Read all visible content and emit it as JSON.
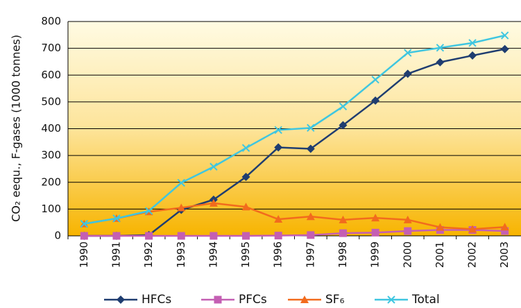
{
  "chart_data": {
    "type": "line",
    "y_label": "CO₂ eequ., F-gases (1000 tonnes)",
    "categories": [
      "1990",
      "1991",
      "1992",
      "1993",
      "1994",
      "1995",
      "1996",
      "1997",
      "1998",
      "1999",
      "2000",
      "2001",
      "2002",
      "2003"
    ],
    "series": [
      {
        "name": "HFCs",
        "color": "#1f3d70",
        "marker": "diamond",
        "values": [
          0,
          0,
          3,
          97,
          135,
          220,
          330,
          325,
          413,
          505,
          605,
          648,
          673,
          697
        ]
      },
      {
        "name": "PFCs",
        "color": "#c45fb3",
        "marker": "square",
        "values": [
          0,
          0,
          0,
          0,
          0,
          0,
          1,
          3,
          10,
          12,
          18,
          22,
          22,
          18
        ]
      },
      {
        "name": "SF₆",
        "color": "#f26b1d",
        "marker": "triangle",
        "values": [
          45,
          65,
          90,
          105,
          122,
          108,
          62,
          72,
          60,
          67,
          60,
          32,
          25,
          33
        ]
      },
      {
        "name": "Total",
        "color": "#3fc6e0",
        "marker": "x",
        "values": [
          45,
          65,
          93,
          198,
          258,
          328,
          395,
          403,
          483,
          583,
          683,
          702,
          720,
          748
        ]
      }
    ],
    "ylim": [
      0,
      800
    ],
    "yticks": [
      0,
      100,
      200,
      300,
      400,
      500,
      600,
      700,
      800
    ],
    "grid": true
  }
}
